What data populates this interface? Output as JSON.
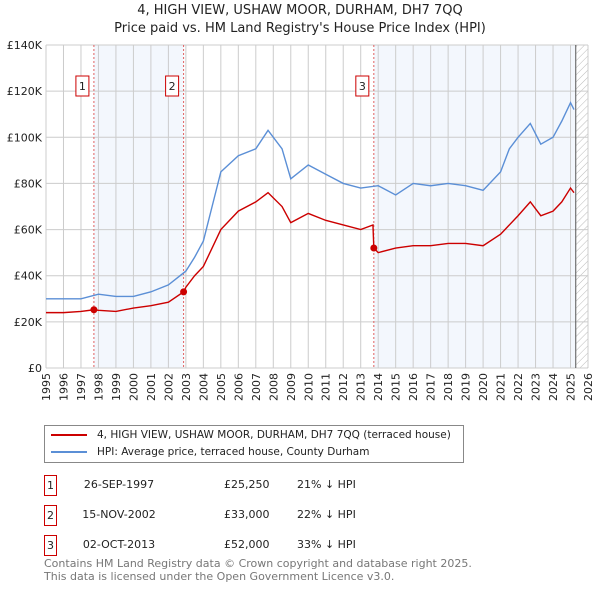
{
  "chart_data": {
    "type": "line",
    "title": "4, HIGH VIEW, USHAW MOOR, DURHAM, DH7 7QQ",
    "subtitle": "Price paid vs. HM Land Registry's House Price Index (HPI)",
    "xlim": [
      1995,
      2026
    ],
    "ylim": [
      0,
      140000
    ],
    "x_ticks": [
      "1995",
      "1996",
      "1997",
      "1998",
      "1999",
      "2000",
      "2001",
      "2002",
      "2003",
      "2004",
      "2005",
      "2006",
      "2007",
      "2008",
      "2009",
      "2010",
      "2011",
      "2012",
      "2013",
      "2014",
      "2015",
      "2016",
      "2017",
      "2018",
      "2019",
      "2020",
      "2021",
      "2022",
      "2023",
      "2024",
      "2025",
      "2026"
    ],
    "y_ticks": [
      {
        "v": 0,
        "label": "£0"
      },
      {
        "v": 20000,
        "label": "£20K"
      },
      {
        "v": 40000,
        "label": "£40K"
      },
      {
        "v": 60000,
        "label": "£60K"
      },
      {
        "v": 80000,
        "label": "£80K"
      },
      {
        "v": 100000,
        "label": "£100K"
      },
      {
        "v": 120000,
        "label": "£120K"
      },
      {
        "v": 140000,
        "label": "£140K"
      }
    ],
    "grid": true,
    "series": [
      {
        "name": "4, HIGH VIEW, USHAW MOOR, DURHAM, DH7 7QQ (terraced house)",
        "color": "#cc0000",
        "x": [
          1995,
          1996,
          1997,
          1997.74,
          1998,
          1999,
          2000,
          2001,
          2002,
          2002.87,
          2003,
          2003.5,
          2004,
          2004.5,
          2005,
          2006,
          2007,
          2007.7,
          2008.5,
          2009,
          2010,
          2011,
          2012,
          2013,
          2013.7,
          2013.75,
          2014,
          2015,
          2016,
          2017,
          2018,
          2019,
          2020,
          2021,
          2022,
          2022.7,
          2023.3,
          2024,
          2024.5,
          2025,
          2025.2
        ],
        "y": [
          24000,
          24000,
          24500,
          25250,
          25000,
          24500,
          26000,
          27000,
          28500,
          33000,
          35000,
          40000,
          44000,
          52000,
          60000,
          68000,
          72000,
          76000,
          70000,
          63000,
          67000,
          64000,
          62000,
          60000,
          62000,
          52000,
          50000,
          52000,
          53000,
          53000,
          54000,
          54000,
          53000,
          58000,
          66000,
          72000,
          66000,
          68000,
          72000,
          78000,
          76000
        ]
      },
      {
        "name": "HPI: Average price, terraced house, County Durham",
        "color": "#5b8fd6",
        "x": [
          1995,
          1996,
          1997,
          1998,
          1999,
          2000,
          2001,
          2002,
          2003,
          2003.5,
          2004,
          2004.5,
          2005,
          2006,
          2007,
          2007.7,
          2008.5,
          2009,
          2010,
          2011,
          2012,
          2013,
          2014,
          2015,
          2016,
          2017,
          2018,
          2019,
          2020,
          2021,
          2021.5,
          2022,
          2022.7,
          2023.3,
          2024,
          2024.5,
          2025,
          2025.2
        ],
        "y": [
          30000,
          30000,
          30000,
          32000,
          31000,
          31000,
          33000,
          36000,
          42000,
          48000,
          55000,
          70000,
          85000,
          92000,
          95000,
          103000,
          95000,
          82000,
          88000,
          84000,
          80000,
          78000,
          79000,
          75000,
          80000,
          79000,
          80000,
          79000,
          77000,
          85000,
          95000,
          100000,
          106000,
          97000,
          100000,
          107000,
          115000,
          112000
        ]
      }
    ],
    "sales": [
      {
        "id": "1",
        "x": 1997.74,
        "date": "26-SEP-1997",
        "price": 25250,
        "price_label": "£25,250",
        "hpi": "21% ↓ HPI"
      },
      {
        "id": "2",
        "x": 2002.87,
        "date": "15-NOV-2002",
        "price": 33000,
        "price_label": "£33,000",
        "hpi": "22% ↓ HPI"
      },
      {
        "id": "3",
        "x": 2013.75,
        "date": "02-OCT-2013",
        "price": 52000,
        "price_label": "£52,000",
        "hpi": "33% ↓ HPI"
      }
    ],
    "shaded_ranges": [
      [
        1997.74,
        2002.87
      ],
      [
        2013.75,
        2025.3
      ]
    ],
    "forecast_hatch_from": 2025.3
  },
  "footer": {
    "line1": "Contains HM Land Registry data © Crown copyright and database right 2025.",
    "line2": "This data is licensed under the Open Government Licence v3.0."
  }
}
